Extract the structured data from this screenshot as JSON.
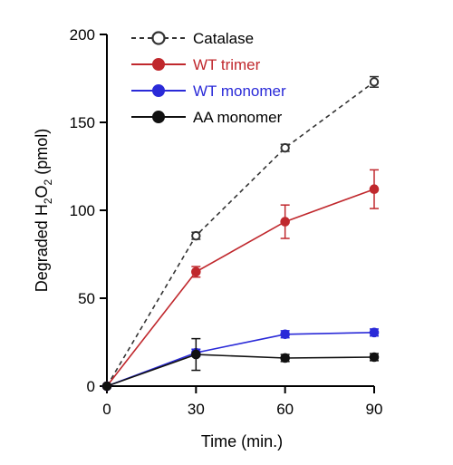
{
  "chart_data": {
    "type": "line",
    "x": [
      0,
      30,
      60,
      90
    ],
    "xlabel": "Time (min.)",
    "ylabel": {
      "prefix": "Degraded H",
      "sub1": "2",
      "mid": "O",
      "sub2": "2",
      "suffix": " (pmol)"
    },
    "xlim": [
      0,
      90
    ],
    "ylim": [
      0,
      200
    ],
    "xticks": [
      0,
      30,
      60,
      90
    ],
    "yticks": [
      0,
      50,
      100,
      150,
      200
    ],
    "grid": false,
    "legend_position": "top-center",
    "series": [
      {
        "name": "Catalase",
        "color": "#333333",
        "line_style": "dashed",
        "marker": "open-circle",
        "values": [
          0,
          85.5,
          135.5,
          173
        ],
        "errors": [
          0,
          2,
          2,
          3
        ]
      },
      {
        "name": "WT trimer",
        "color": "#c0282d",
        "line_style": "solid",
        "marker": "filled-circle",
        "values": [
          0,
          65,
          93.5,
          112
        ],
        "errors": [
          0,
          3,
          9.5,
          11
        ]
      },
      {
        "name": "WT monomer",
        "color": "#2a2ad8",
        "line_style": "solid",
        "marker": "filled-circle",
        "values": [
          0,
          19,
          29.5,
          30.5
        ],
        "errors": [
          0,
          2,
          2,
          2
        ]
      },
      {
        "name": "AA monomer",
        "color": "#111111",
        "line_style": "solid",
        "marker": "filled-circle",
        "values": [
          0,
          18,
          16,
          16.5
        ],
        "errors": [
          0,
          9,
          2,
          2
        ]
      }
    ]
  }
}
